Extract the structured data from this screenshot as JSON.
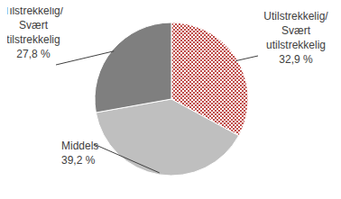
{
  "chart_data": {
    "type": "pie",
    "categories": [
      "Utilstrekkelig/Svært utilstrekkelig",
      "Middels",
      "Tilstrekkelig/Svært tilstrekkelig"
    ],
    "values": [
      32.9,
      39.2,
      27.8
    ],
    "value_labels": [
      "32,9 %",
      "39,2 %",
      "27,8 %"
    ],
    "colors": [
      "#c0504d",
      "#bfbfbf",
      "#7f7f7f"
    ]
  }
}
